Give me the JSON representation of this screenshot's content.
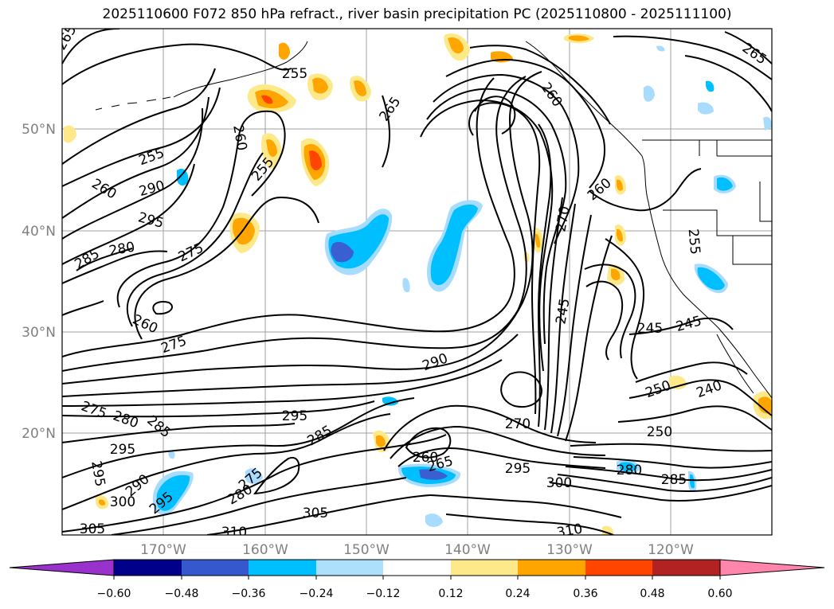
{
  "map": {
    "title": "2025110600 F072 850 hPa refract., river basin precipitation PC (2025110800 - 2025111100)",
    "lat_labels": [
      "50°N",
      "40°N",
      "30°N",
      "20°N"
    ],
    "lon_labels": [
      "170°W",
      "160°W",
      "150°W",
      "140°W",
      "130°W",
      "120°W"
    ],
    "contour_labels": [
      "265",
      "255",
      "265",
      "260",
      "265",
      "255",
      "260",
      "255",
      "290",
      "260",
      "295",
      "285",
      "280",
      "275",
      "260",
      "275",
      "260",
      "270",
      "245",
      "245",
      "255",
      "245",
      "250",
      "240",
      "290",
      "275",
      "280",
      "285",
      "295",
      "285",
      "270",
      "250",
      "295",
      "260",
      "265",
      "295",
      "300",
      "280",
      "285",
      "295",
      "290",
      "295",
      "300",
      "275",
      "280",
      "305",
      "305",
      "310",
      "310"
    ],
    "colors": {
      "fill_pos_1": "#fde98a",
      "fill_pos_2": "#ffa500",
      "fill_pos_3": "#ff4500",
      "fill_neg_1": "#a8dcff",
      "fill_neg_2": "#00bfff",
      "fill_neg_3": "#3a5fd0",
      "grid": "#a0a0a0",
      "axis_text": "#808080"
    }
  },
  "colorbar": {
    "ticks": [
      "−0.60",
      "−0.48",
      "−0.36",
      "−0.24",
      "−0.12",
      "0.12",
      "0.24",
      "0.36",
      "0.48",
      "0.60"
    ],
    "colors": [
      "#9932cc",
      "#00008b",
      "#3658cf",
      "#00bfff",
      "#ade1fb",
      "#ffffff",
      "#fde98a",
      "#ffa500",
      "#ff4500",
      "#b22222",
      "#ff85ad"
    ]
  }
}
